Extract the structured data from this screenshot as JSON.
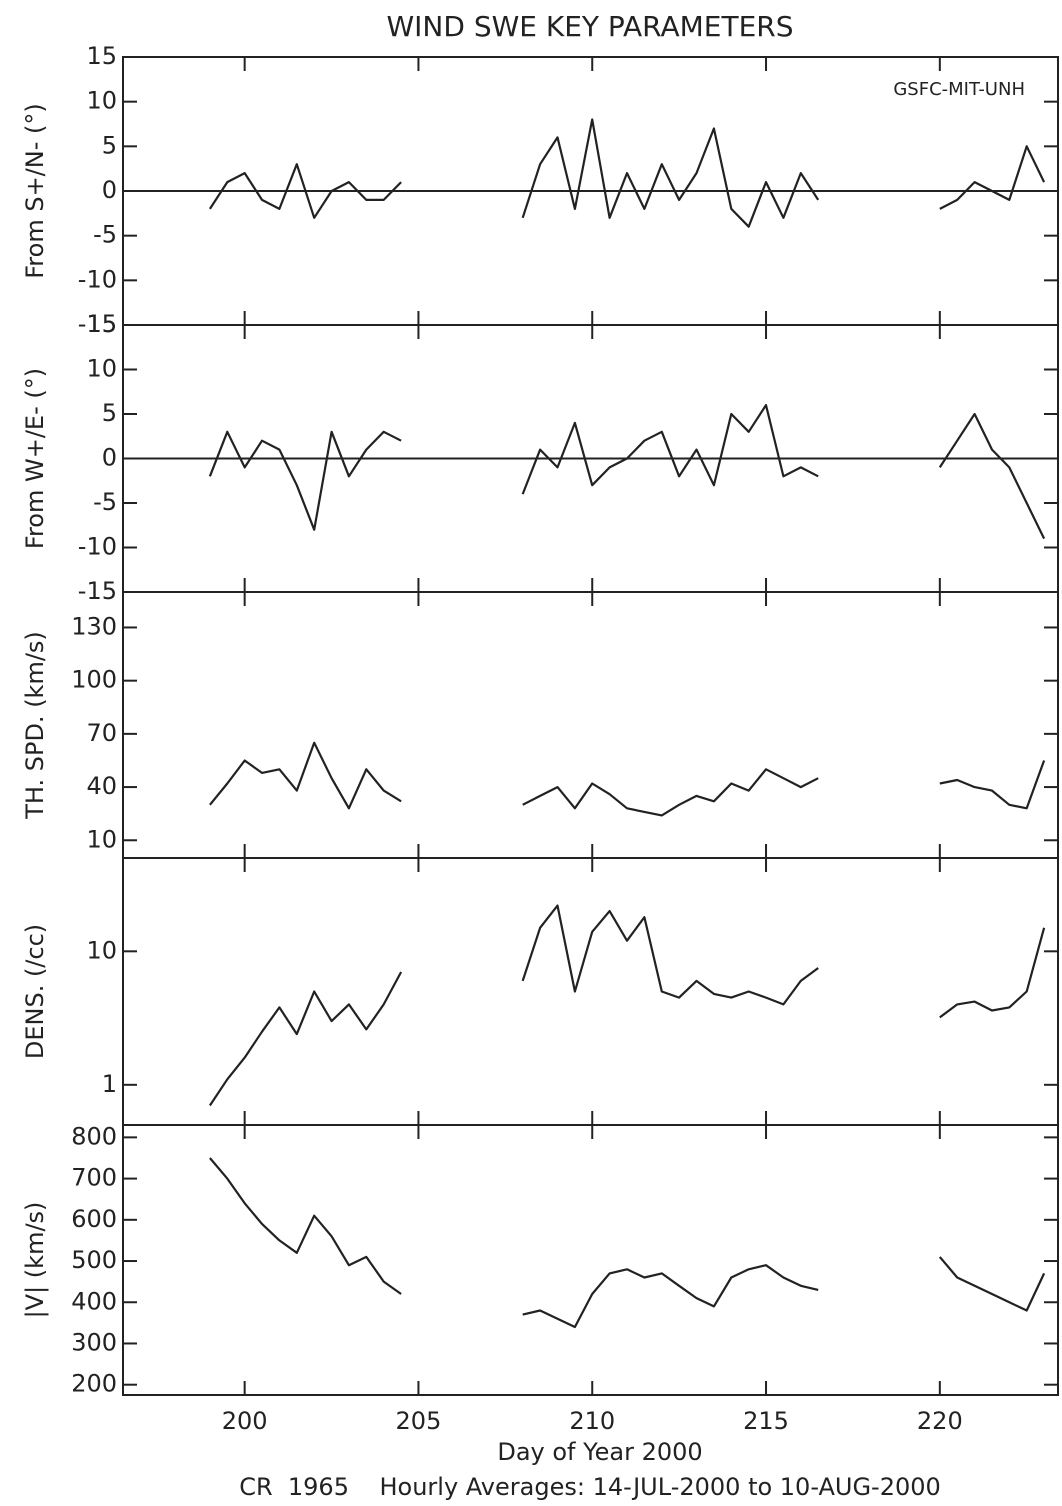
{
  "chart_data": [
    {
      "type": "line",
      "title": "WIND SWE KEY PARAMETERS",
      "annotation": "GSFC-MIT-UNH",
      "ylabel": "From S+/N- (°)",
      "color": "#222222",
      "zero_line": true,
      "xlim": [
        196.5,
        223.4
      ],
      "xticks": [
        200,
        205,
        210,
        215,
        220
      ],
      "ylim": [
        -15,
        15
      ],
      "yticks": [
        -15,
        -10,
        -5,
        0,
        5,
        10,
        15
      ],
      "x": [
        199,
        199.5,
        200,
        200.5,
        201,
        201.5,
        202,
        202.5,
        203,
        203.5,
        204,
        204.5,
        205,
        205.5,
        206,
        206.5,
        207,
        207.5,
        208,
        208.5,
        209,
        209.5,
        210,
        210.5,
        211,
        211.5,
        212,
        212.5,
        213,
        213.5,
        214,
        214.5,
        215,
        215.5,
        216,
        216.5,
        217,
        217.5,
        218,
        218.5,
        219,
        219.5,
        220,
        220.5,
        221,
        221.5,
        222,
        222.5,
        223
      ],
      "values": [
        -2,
        1,
        2,
        -1,
        -2,
        3,
        -3,
        0,
        1,
        -1,
        -1,
        1,
        null,
        null,
        null,
        null,
        null,
        null,
        -3,
        3,
        6,
        -2,
        8,
        -3,
        2,
        -2,
        3,
        -1,
        2,
        7,
        -2,
        -4,
        1,
        -3,
        2,
        -1,
        null,
        null,
        null,
        null,
        null,
        null,
        -2,
        -1,
        1,
        0,
        -1,
        5,
        1
      ]
    },
    {
      "type": "line",
      "ylabel": "From W+/E- (°)",
      "color": "#222222",
      "zero_line": true,
      "xlim": [
        196.5,
        223.4
      ],
      "xticks": [
        200,
        205,
        210,
        215,
        220
      ],
      "ylim": [
        -15,
        15
      ],
      "yticks": [
        -15,
        -10,
        -5,
        0,
        5,
        10,
        15
      ],
      "x": [
        199,
        199.5,
        200,
        200.5,
        201,
        201.5,
        202,
        202.5,
        203,
        203.5,
        204,
        204.5,
        205,
        205.5,
        206,
        206.5,
        207,
        207.5,
        208,
        208.5,
        209,
        209.5,
        210,
        210.5,
        211,
        211.5,
        212,
        212.5,
        213,
        213.5,
        214,
        214.5,
        215,
        215.5,
        216,
        216.5,
        217,
        217.5,
        218,
        218.5,
        219,
        219.5,
        220,
        220.5,
        221,
        221.5,
        222,
        222.5,
        223
      ],
      "values": [
        -2,
        3,
        -1,
        2,
        1,
        -3,
        -8,
        3,
        -2,
        1,
        3,
        2,
        null,
        null,
        null,
        null,
        null,
        null,
        -4,
        1,
        -1,
        4,
        -3,
        -1,
        0,
        2,
        3,
        -2,
        1,
        -3,
        5,
        3,
        6,
        -2,
        -1,
        -2,
        null,
        null,
        null,
        null,
        null,
        null,
        -1,
        2,
        5,
        1,
        -1,
        -5,
        -9
      ]
    },
    {
      "type": "line",
      "ylabel": "TH. SPD. (km/s)",
      "color": "#222222",
      "xlim": [
        196.5,
        223.4
      ],
      "xticks": [
        200,
        205,
        210,
        215,
        220
      ],
      "ylim": [
        0,
        150
      ],
      "yticks": [
        10,
        40,
        70,
        100,
        130
      ],
      "x": [
        199,
        199.5,
        200,
        200.5,
        201,
        201.5,
        202,
        202.5,
        203,
        203.5,
        204,
        204.5,
        205,
        205.5,
        206,
        206.5,
        207,
        207.5,
        208,
        208.5,
        209,
        209.5,
        210,
        210.5,
        211,
        211.5,
        212,
        212.5,
        213,
        213.5,
        214,
        214.5,
        215,
        215.5,
        216,
        216.5,
        217,
        217.5,
        218,
        218.5,
        219,
        219.5,
        220,
        220.5,
        221,
        221.5,
        222,
        222.5,
        223
      ],
      "values": [
        30,
        42,
        55,
        48,
        50,
        38,
        65,
        45,
        28,
        50,
        38,
        32,
        null,
        null,
        null,
        null,
        null,
        null,
        30,
        35,
        40,
        28,
        42,
        36,
        28,
        26,
        24,
        30,
        35,
        32,
        42,
        38,
        50,
        45,
        40,
        45,
        null,
        null,
        null,
        null,
        null,
        null,
        42,
        44,
        40,
        38,
        30,
        28,
        55
      ]
    },
    {
      "type": "line",
      "ylabel": "DENS. (/cc)",
      "color": "#222222",
      "yscale": "log",
      "xlim": [
        196.5,
        223.4
      ],
      "xticks": [
        200,
        205,
        210,
        215,
        220
      ],
      "ylim": [
        0.5,
        50
      ],
      "yticks": [
        1,
        10
      ],
      "x": [
        199,
        199.5,
        200,
        200.5,
        201,
        201.5,
        202,
        202.5,
        203,
        203.5,
        204,
        204.5,
        205,
        205.5,
        206,
        206.5,
        207,
        207.5,
        208,
        208.5,
        209,
        209.5,
        210,
        210.5,
        211,
        211.5,
        212,
        212.5,
        213,
        213.5,
        214,
        214.5,
        215,
        215.5,
        216,
        216.5,
        217,
        217.5,
        218,
        218.5,
        219,
        219.5,
        220,
        220.5,
        221,
        221.5,
        222,
        222.5,
        223
      ],
      "values": [
        0.7,
        1.1,
        1.6,
        2.5,
        3.8,
        2.4,
        5,
        3,
        4,
        2.6,
        4,
        7,
        null,
        null,
        null,
        null,
        null,
        null,
        6,
        15,
        22,
        5,
        14,
        20,
        12,
        18,
        5,
        4.5,
        6,
        4.8,
        4.5,
        5,
        4.5,
        4,
        6,
        7.5,
        null,
        null,
        null,
        null,
        null,
        null,
        3.2,
        4,
        4.2,
        3.6,
        3.8,
        5,
        15
      ]
    },
    {
      "type": "line",
      "ylabel": "|V| (km/s)",
      "color": "#222222",
      "xlabel": "Day of Year 2000",
      "caption": "CR  1965    Hourly Averages: 14-JUL-2000 to 10-AUG-2000",
      "xlim": [
        196.5,
        223.4
      ],
      "xticks": [
        200,
        205,
        210,
        215,
        220
      ],
      "ylim": [
        175,
        830
      ],
      "yticks": [
        200,
        300,
        400,
        500,
        600,
        700,
        800
      ],
      "x": [
        199,
        199.5,
        200,
        200.5,
        201,
        201.5,
        202,
        202.5,
        203,
        203.5,
        204,
        204.5,
        205,
        205.5,
        206,
        206.5,
        207,
        207.5,
        208,
        208.5,
        209,
        209.5,
        210,
        210.5,
        211,
        211.5,
        212,
        212.5,
        213,
        213.5,
        214,
        214.5,
        215,
        215.5,
        216,
        216.5,
        217,
        217.5,
        218,
        218.5,
        219,
        219.5,
        220,
        220.5,
        221,
        221.5,
        222,
        222.5,
        223
      ],
      "values": [
        750,
        700,
        640,
        590,
        550,
        520,
        610,
        560,
        490,
        510,
        450,
        420,
        null,
        null,
        null,
        null,
        null,
        null,
        370,
        380,
        360,
        340,
        420,
        470,
        480,
        460,
        470,
        440,
        410,
        390,
        460,
        480,
        490,
        460,
        440,
        430,
        null,
        null,
        null,
        null,
        null,
        null,
        510,
        460,
        440,
        420,
        400,
        380,
        470
      ]
    }
  ]
}
